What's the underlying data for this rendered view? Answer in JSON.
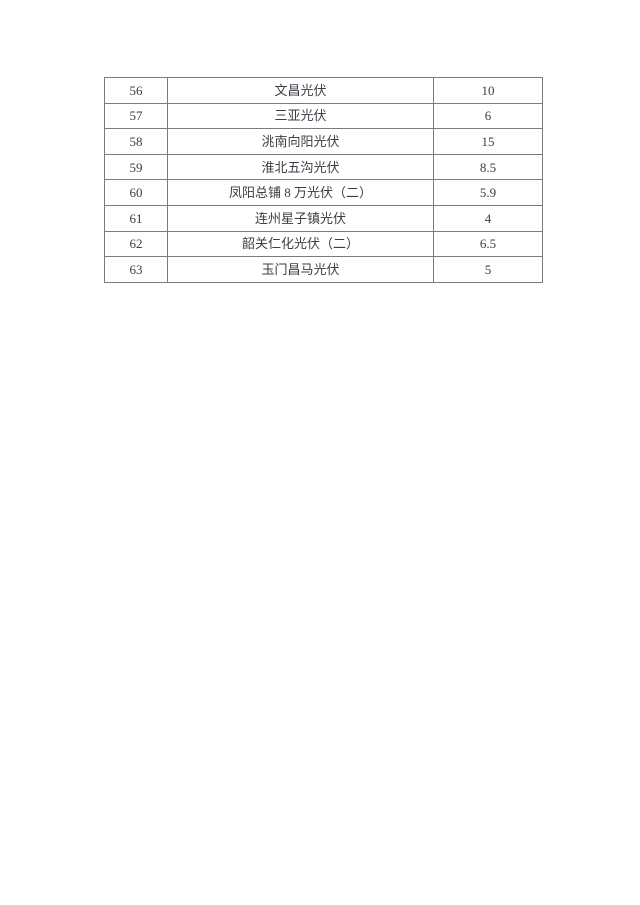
{
  "page": {
    "background_color": "#ffffff"
  },
  "table": {
    "border_color": "#7b7b7b",
    "text_color": "#3d3d46",
    "rows": [
      {
        "no": "56",
        "name": "文昌光伏",
        "value": "10"
      },
      {
        "no": "57",
        "name": "三亚光伏",
        "value": "6"
      },
      {
        "no": "58",
        "name": "洮南向阳光伏",
        "value": "15"
      },
      {
        "no": "59",
        "name": "淮北五沟光伏",
        "value": "8.5"
      },
      {
        "no": "60",
        "name": "凤阳总铺 8 万光伏（二）",
        "value": "5.9"
      },
      {
        "no": "61",
        "name": "连州星子镇光伏",
        "value": "4"
      },
      {
        "no": "62",
        "name": "韶关仁化光伏（二）",
        "value": "6.5"
      },
      {
        "no": "63",
        "name": "玉门昌马光伏",
        "value": "5"
      }
    ]
  }
}
